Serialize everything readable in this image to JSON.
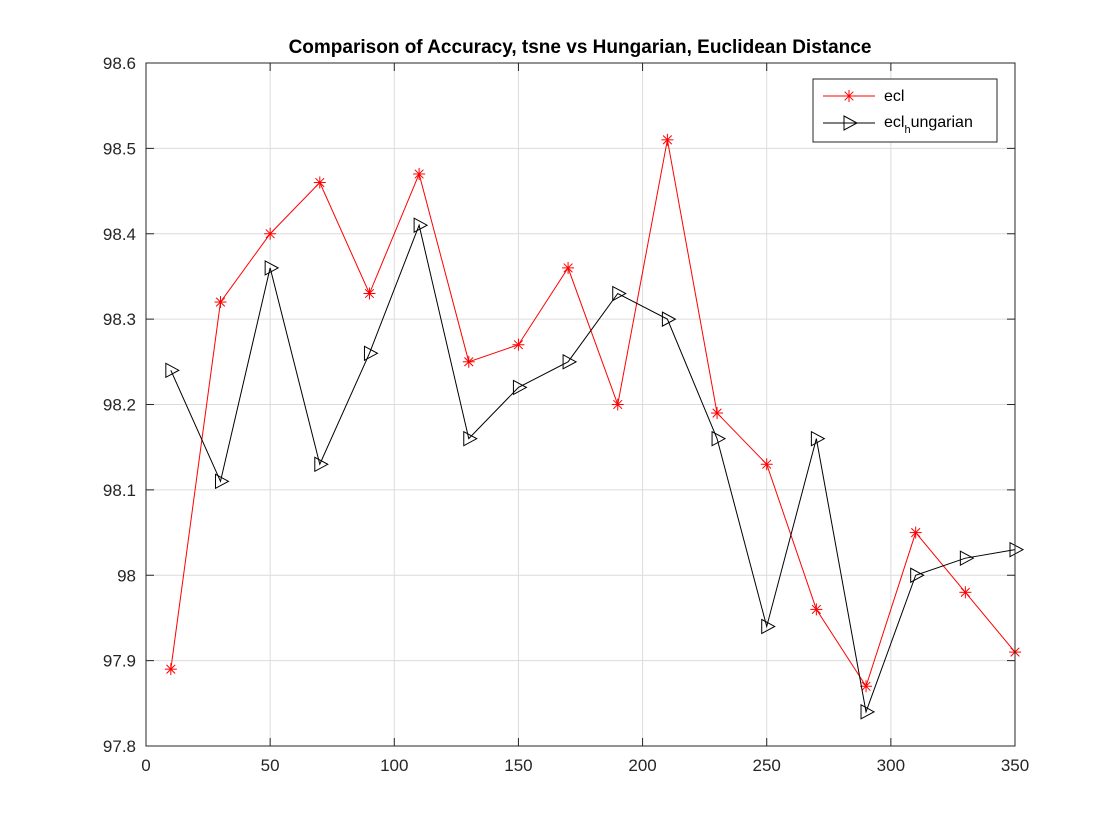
{
  "chart_data": {
    "type": "line",
    "title": "Comparison of Accuracy, tsne vs Hungarian, Euclidean Distance",
    "xlabel": "",
    "ylabel": "",
    "xlim": [
      0,
      350
    ],
    "ylim": [
      97.8,
      98.6
    ],
    "xticks": [
      0,
      50,
      100,
      150,
      200,
      250,
      300,
      350
    ],
    "yticks": [
      97.8,
      97.9,
      98,
      98.1,
      98.2,
      98.3,
      98.4,
      98.5,
      98.6
    ],
    "ytick_labels": [
      "97.8",
      "97.9",
      "98",
      "98.1",
      "98.2",
      "98.3",
      "98.4",
      "98.5",
      "98.6"
    ],
    "grid": true,
    "legend_position": "top-right",
    "x": [
      10,
      30,
      50,
      70,
      90,
      110,
      130,
      150,
      170,
      190,
      210,
      230,
      250,
      270,
      290,
      310,
      330,
      350
    ],
    "series": [
      {
        "name": "ecl",
        "color": "#ff0000",
        "marker": "asterisk",
        "values": [
          97.89,
          98.32,
          98.4,
          98.46,
          98.33,
          98.47,
          98.25,
          98.27,
          98.36,
          98.2,
          98.51,
          98.19,
          98.13,
          97.96,
          97.87,
          98.05,
          97.98,
          97.91
        ]
      },
      {
        "name_main": "ecl",
        "name_sub": "h",
        "name_rest": "ungarian",
        "color": "#000000",
        "marker": "triangle-right",
        "values": [
          98.24,
          98.11,
          98.36,
          98.13,
          98.26,
          98.41,
          98.16,
          98.22,
          98.25,
          98.33,
          98.3,
          98.16,
          97.94,
          98.16,
          97.84,
          98.0,
          98.02,
          98.03
        ]
      }
    ]
  }
}
